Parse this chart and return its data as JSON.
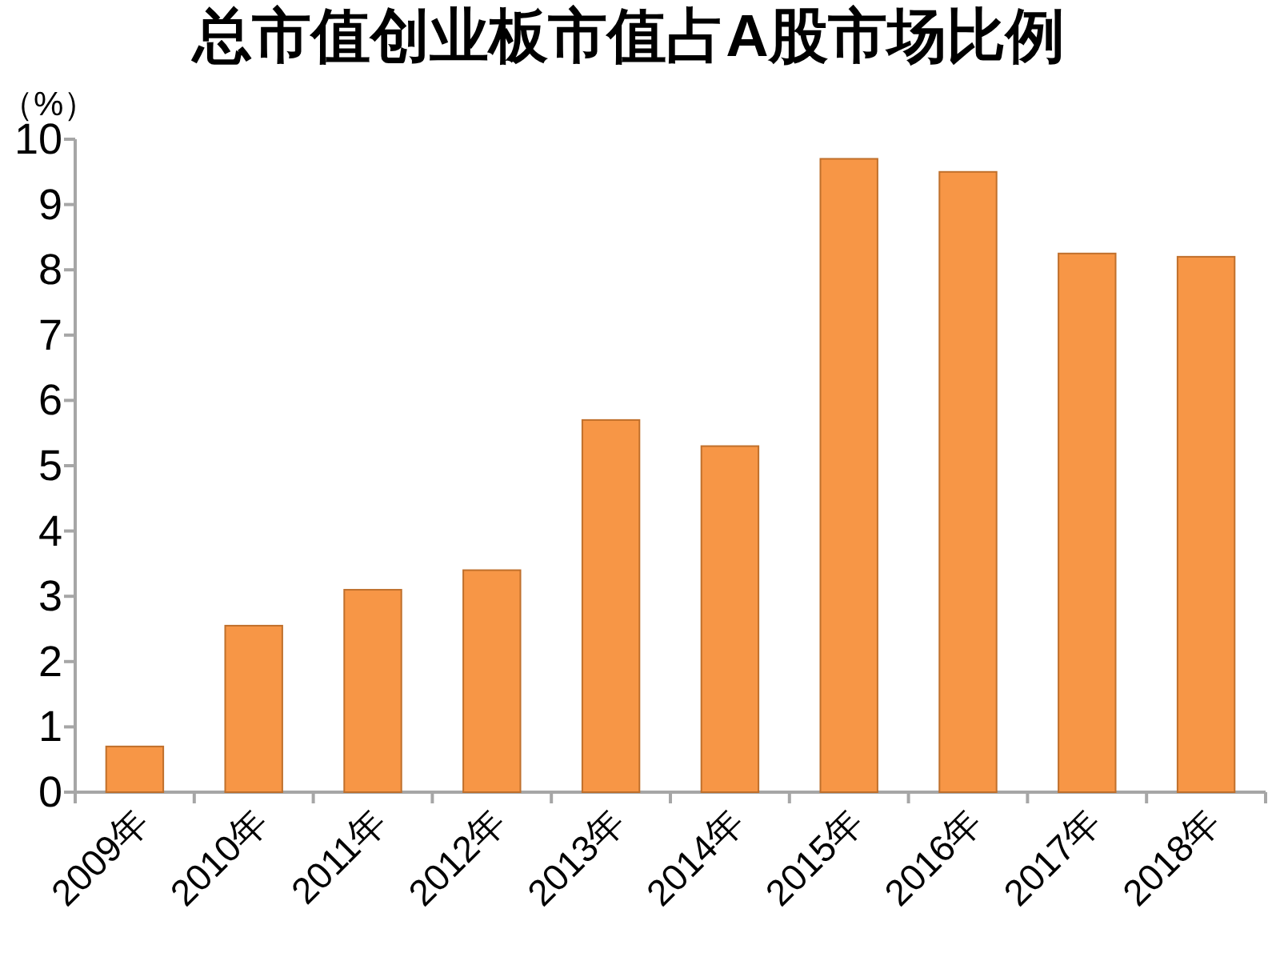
{
  "chart_data": {
    "type": "bar",
    "title": "总市值创业板市值占A股市场比例",
    "ylabel": "（%）",
    "categories": [
      "2009年",
      "2010年",
      "2011年",
      "2012年",
      "2013年",
      "2014年",
      "2015年",
      "2016年",
      "2017年",
      "2018年"
    ],
    "values": [
      0.7,
      2.55,
      3.1,
      3.4,
      5.7,
      5.3,
      9.7,
      9.5,
      8.25,
      8.2
    ],
    "color": "#f79646",
    "ylim": [
      0,
      10
    ],
    "yticks": [
      0,
      1,
      2,
      3,
      4,
      5,
      6,
      7,
      8,
      9,
      10
    ]
  }
}
